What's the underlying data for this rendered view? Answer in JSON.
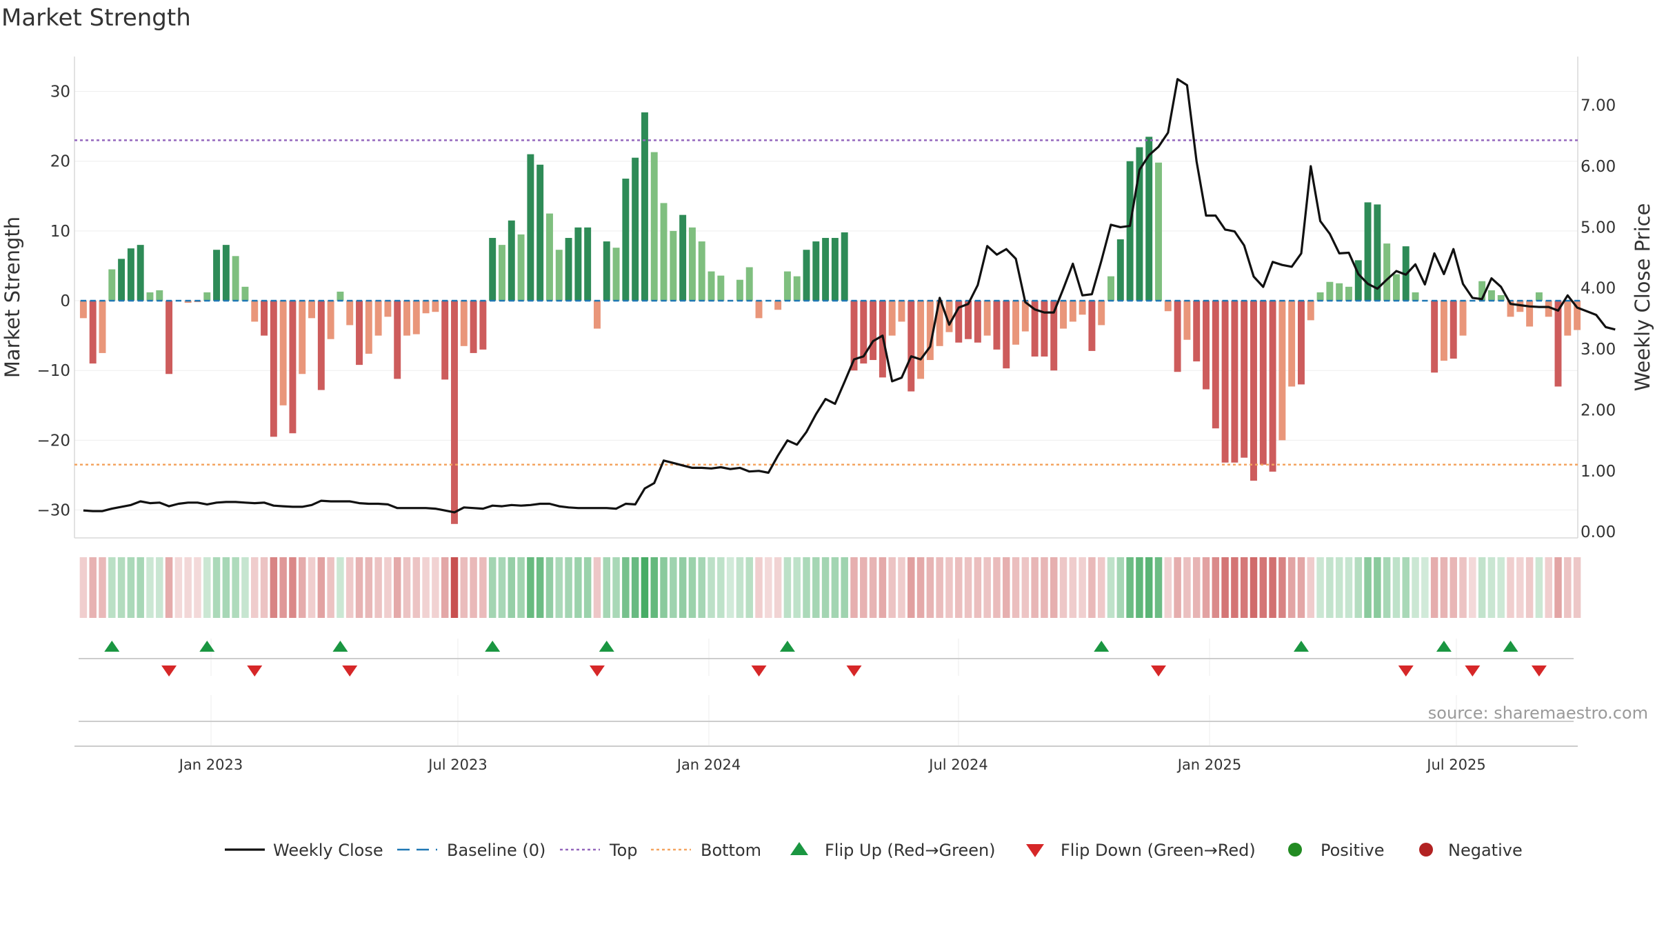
{
  "title": "Market Strength",
  "source": "source: sharemaestro.com",
  "colors": {
    "pos_strong": "#2e8b57",
    "pos_weak": "#7fbf7f",
    "neg_strong": "#cd5c5c",
    "neg_weak": "#e9967a",
    "price": "#111111",
    "baseline": "#1f77b4",
    "top": "#9467bd",
    "bottom": "#f4a460",
    "flip_up": "#1a9641",
    "flip_down": "#d62728",
    "positive": "#228b22",
    "negative": "#b22222"
  },
  "chart_data": {
    "type": "bar",
    "title": "Market Strength",
    "ylabel": "Market Strength",
    "y2label": "Weekly Close Price",
    "ylim": [
      -34,
      35
    ],
    "y2lim": [
      -0.1,
      7.8
    ],
    "yticks": [
      {
        "v": 30,
        "label": "30"
      },
      {
        "v": 20,
        "label": "20"
      },
      {
        "v": 10,
        "label": "10"
      },
      {
        "v": 0,
        "label": "0"
      },
      {
        "v": -10,
        "label": "−10"
      },
      {
        "v": -20,
        "label": "−20"
      },
      {
        "v": -30,
        "label": "−30"
      }
    ],
    "y2ticks": [
      {
        "v": 7,
        "label": "7.00"
      },
      {
        "v": 6,
        "label": "6.00"
      },
      {
        "v": 5,
        "label": "5.00"
      },
      {
        "v": 4,
        "label": "4.00"
      },
      {
        "v": 3,
        "label": "3.00"
      },
      {
        "v": 2,
        "label": "2.00"
      },
      {
        "v": 1,
        "label": "1.00"
      },
      {
        "v": 0,
        "label": "0.00"
      }
    ],
    "date_ticks": [
      "Jan 2023",
      "Jul 2023",
      "Jan 2024",
      "Jul 2024",
      "Jan 2025",
      "Jul 2025"
    ],
    "top_level": 23,
    "bottom_level": -23.5,
    "baseline": 0,
    "strength": [
      -2.5,
      -9,
      -7.5,
      4.5,
      6,
      7.5,
      8,
      1.2,
      1.5,
      -10.5,
      0,
      -0.3,
      -0.2,
      1.2,
      7.3,
      8,
      6.4,
      2,
      -3,
      -5,
      -19.5,
      -15,
      -19,
      -10.5,
      -2.5,
      -12.8,
      -5.5,
      1.3,
      -3.5,
      -9.2,
      -7.6,
      -5,
      -2.3,
      -11.2,
      -5,
      -4.8,
      -1.8,
      -1.6,
      -11.3,
      -32,
      -6.5,
      -7.5,
      -7,
      9,
      8,
      11.5,
      9.5,
      21,
      19.5,
      12.5,
      7.3,
      9,
      10.5,
      10.5,
      -4,
      8.5,
      7.6,
      17.5,
      20.5,
      27,
      21.3,
      14,
      10,
      12.3,
      10.5,
      8.5,
      4.2,
      3.6,
      0,
      3,
      4.8,
      -2.5,
      0,
      -1.3,
      4.2,
      3.5,
      7.3,
      8.5,
      9,
      9,
      9.8,
      -10,
      -9,
      -8.5,
      -11,
      -5,
      -3,
      -13,
      -11.2,
      -8.5,
      -6.5,
      -4.5,
      -6,
      -5.5,
      -6,
      -5,
      -7,
      -9.7,
      -6.3,
      -4.4,
      -8,
      -8,
      -10,
      -4,
      -3,
      -2,
      -7.2,
      -3.5,
      3.5,
      8.8,
      20,
      22,
      23.5,
      19.8,
      -1.5,
      -10.2,
      -5.6,
      -8.7,
      -12.7,
      -18.3,
      -23.2,
      -23.2,
      -22.5,
      -25.8,
      -23.5,
      -24.5,
      -20,
      -12.3,
      -12,
      -2.8,
      1.2,
      2.7,
      2.5,
      2,
      5.8,
      14.1,
      13.8,
      8.2,
      3.8,
      7.8,
      1.2,
      0,
      -10.3,
      -8.6,
      -8.3,
      -5,
      0,
      2.8,
      1.5,
      0.8,
      -2.3,
      -1.6,
      -3.7,
      1.2,
      -2.3,
      -12.3,
      -5,
      -4.2
    ],
    "price": [
      0.35,
      0.34,
      0.34,
      0.38,
      0.41,
      0.44,
      0.5,
      0.47,
      0.48,
      0.42,
      0.46,
      0.48,
      0.48,
      0.45,
      0.48,
      0.49,
      0.49,
      0.48,
      0.47,
      0.48,
      0.43,
      0.42,
      0.41,
      0.41,
      0.44,
      0.51,
      0.5,
      0.5,
      0.5,
      0.47,
      0.46,
      0.46,
      0.45,
      0.39,
      0.39,
      0.39,
      0.39,
      0.38,
      0.35,
      0.32,
      0.4,
      0.39,
      0.38,
      0.43,
      0.42,
      0.44,
      0.43,
      0.44,
      0.46,
      0.46,
      0.42,
      0.4,
      0.39,
      0.39,
      0.39,
      0.39,
      0.38,
      0.46,
      0.45,
      0.71,
      0.8,
      1.17,
      1.13,
      1.09,
      1.05,
      1.05,
      1.04,
      1.06,
      1.03,
      1.05,
      0.99,
      1.0,
      0.97,
      1.25,
      1.5,
      1.43,
      1.64,
      1.93,
      2.18,
      2.1,
      2.46,
      2.83,
      2.88,
      3.13,
      3.22,
      2.47,
      2.53,
      2.88,
      2.83,
      3.04,
      3.84,
      3.4,
      3.68,
      3.74,
      4.05,
      4.69,
      4.55,
      4.64,
      4.48,
      3.77,
      3.65,
      3.6,
      3.6,
      3.99,
      4.4,
      3.88,
      3.9,
      4.45,
      5.04,
      5.0,
      5.02,
      5.94,
      6.18,
      6.32,
      6.55,
      7.43,
      7.33,
      6.08,
      5.19,
      5.19,
      4.96,
      4.93,
      4.7,
      4.19,
      4.02,
      4.43,
      4.38,
      4.35,
      4.57,
      6.0,
      5.1,
      4.89,
      4.57,
      4.58,
      4.23,
      4.07,
      3.99,
      4.14,
      4.28,
      4.22,
      4.39,
      4.06,
      4.57,
      4.23,
      4.64,
      4.07,
      3.84,
      3.82,
      4.16,
      4.02,
      3.74,
      3.72,
      3.7,
      3.69,
      3.69,
      3.63,
      3.88,
      3.68,
      3.62,
      3.56,
      3.36,
      3.32
    ],
    "flip_up": [
      3,
      13,
      27,
      43,
      55,
      74,
      107,
      128,
      143,
      150
    ],
    "flip_down": [
      9,
      18,
      28,
      54,
      71,
      81,
      113,
      139,
      146,
      153
    ]
  },
  "legend": [
    {
      "label": "Weekly Close",
      "kind": "line"
    },
    {
      "label": "Baseline (0)",
      "kind": "dash"
    },
    {
      "label": "Top",
      "kind": "dot-purple"
    },
    {
      "label": "Bottom",
      "kind": "dot-orange"
    },
    {
      "label": "Flip Up (Red→Green)",
      "kind": "tri-up"
    },
    {
      "label": "Flip Down (Green→Red)",
      "kind": "tri-down"
    },
    {
      "label": "Positive",
      "kind": "circle-green"
    },
    {
      "label": "Negative",
      "kind": "circle-red"
    }
  ]
}
